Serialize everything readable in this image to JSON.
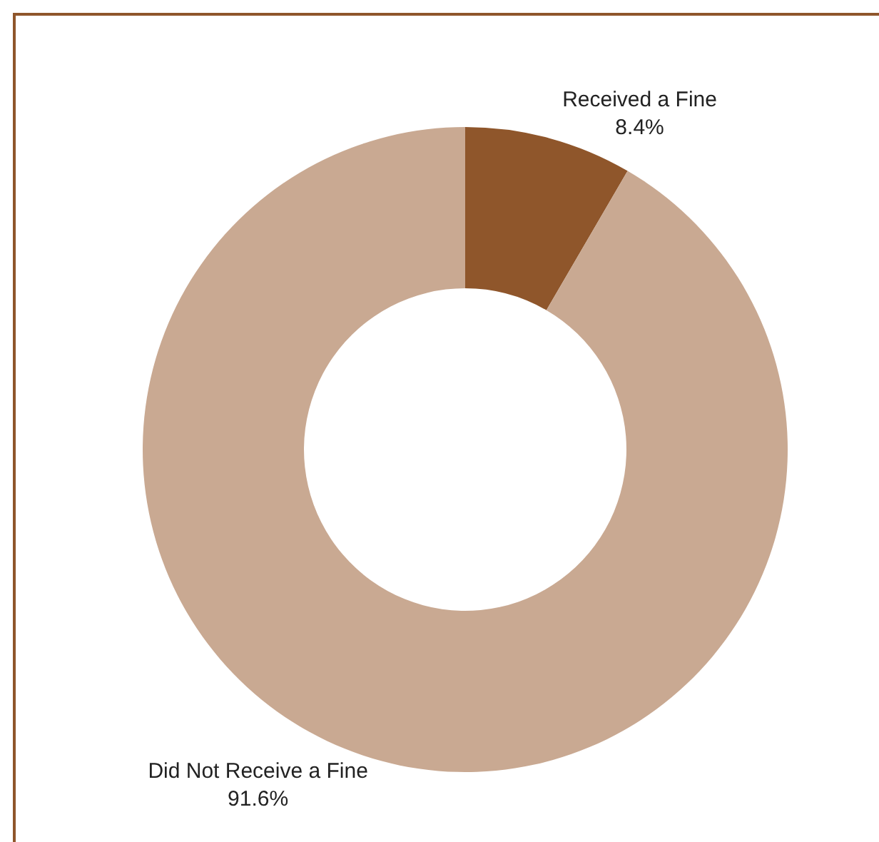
{
  "chart_data": {
    "type": "donut",
    "categories": [
      "Received a Fine",
      "Did Not Receive a Fine"
    ],
    "values": [
      8.4,
      91.6
    ],
    "colors": [
      "#8f562b",
      "#c9a992"
    ],
    "value_labels": [
      "8.4%",
      "91.6%"
    ],
    "legend": false
  }
}
